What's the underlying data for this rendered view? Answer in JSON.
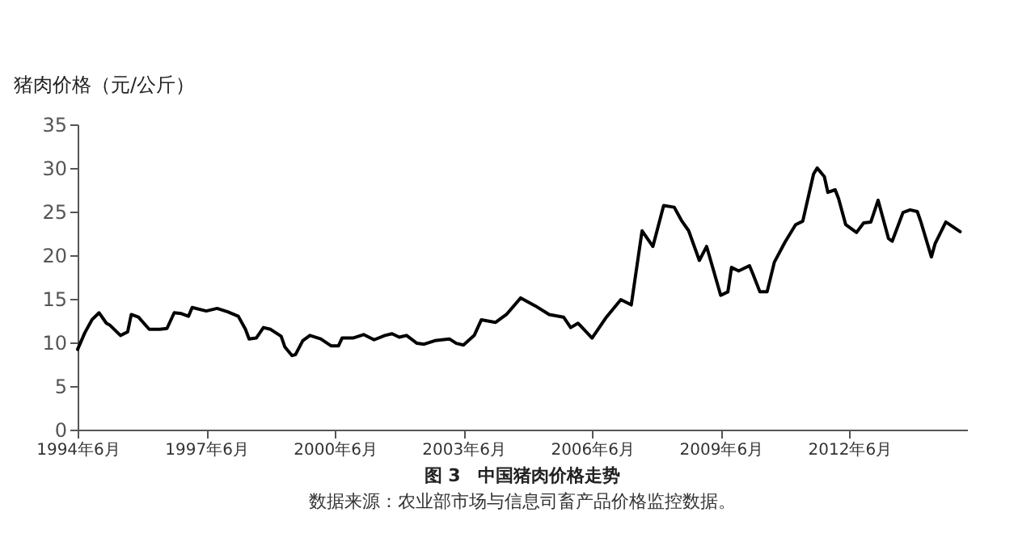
{
  "chart_data": {
    "type": "line",
    "title": "图 3　中国猪肉价格走势",
    "ylabel": "猪肉价格（元/公斤）",
    "annotations": [
      "数据来源：农业部市场与信息司畜产品价格监控数据。"
    ],
    "x": [
      "1994-06",
      "1994-08",
      "1994-10",
      "1994-12",
      "1995-02",
      "1995-03",
      "1995-06",
      "1995-08",
      "1995-09",
      "1995-11",
      "1996-02",
      "1996-05",
      "1996-07",
      "1996-09",
      "1996-11",
      "1997-01",
      "1997-02",
      "1997-06",
      "1997-09",
      "1997-12",
      "1998-03",
      "1998-05",
      "1998-06",
      "1998-08",
      "1998-10",
      "1998-12",
      "1999-03",
      "1999-04",
      "1999-06",
      "1999-07",
      "1999-09",
      "1999-11",
      "2000-02",
      "2000-05",
      "2000-07",
      "2000-08",
      "2000-11",
      "2001-02",
      "2001-05",
      "2001-08",
      "2001-10",
      "2001-12",
      "2002-02",
      "2002-05",
      "2002-07",
      "2002-10",
      "2003-02",
      "2003-04",
      "2003-06",
      "2003-09",
      "2003-11",
      "2004-03",
      "2004-06",
      "2004-10",
      "2005-02",
      "2005-06",
      "2005-10",
      "2005-12",
      "2006-02",
      "2006-06",
      "2006-10",
      "2007-02",
      "2007-05",
      "2007-08",
      "2007-11",
      "2008-02",
      "2008-05",
      "2008-07",
      "2008-09",
      "2008-12",
      "2009-02",
      "2009-03",
      "2009-06",
      "2009-08",
      "2009-09",
      "2009-11",
      "2010-02",
      "2010-03",
      "2010-05",
      "2010-07",
      "2010-09",
      "2010-12",
      "2011-03",
      "2011-05",
      "2011-08",
      "2011-09",
      "2011-11",
      "2011-12",
      "2012-02",
      "2012-03",
      "2012-05",
      "2012-08",
      "2012-10",
      "2012-12",
      "2013-02",
      "2013-05",
      "2013-06",
      "2013-09",
      "2013-11",
      "2014-01",
      "2014-02",
      "2014-05",
      "2014-06",
      "2014-09",
      "2015-01"
    ],
    "series": [
      {
        "color": "#000000",
        "values": [
          9.2,
          11.1,
          12.6,
          13.4,
          12.2,
          12.0,
          10.8,
          11.2,
          13.2,
          12.9,
          11.5,
          11.5,
          11.6,
          13.4,
          13.3,
          13.0,
          14.0,
          13.6,
          13.9,
          13.5,
          13.0,
          11.5,
          10.4,
          10.5,
          11.7,
          11.5,
          10.7,
          9.5,
          8.5,
          8.6,
          10.2,
          10.8,
          10.4,
          9.6,
          9.6,
          10.5,
          10.5,
          10.9,
          10.3,
          10.8,
          11.0,
          10.6,
          10.8,
          9.9,
          9.8,
          10.2,
          10.4,
          9.9,
          9.7,
          10.8,
          12.6,
          12.3,
          13.2,
          15.1,
          14.2,
          13.2,
          12.9,
          11.7,
          12.2,
          10.5,
          12.9,
          14.9,
          14.3,
          22.8,
          21.0,
          25.7,
          25.5,
          24.0,
          22.8,
          19.4,
          21.0,
          19.7,
          15.4,
          15.8,
          18.6,
          18.2,
          18.8,
          17.9,
          15.8,
          15.8,
          19.2,
          21.5,
          23.5,
          23.9,
          29.3,
          30.0,
          29.0,
          27.2,
          27.5,
          26.5,
          23.5,
          22.6,
          23.7,
          23.8,
          26.3,
          21.9,
          21.6,
          24.9,
          25.2,
          25.0,
          23.8,
          19.8,
          21.3,
          23.8,
          22.7
        ]
      }
    ],
    "xlim": [
      "1994-06",
      "2015-03"
    ],
    "xticks": [
      {
        "value": "1994-06",
        "label": "1994年6月"
      },
      {
        "value": "1997-06",
        "label": "1997年6月"
      },
      {
        "value": "2000-06",
        "label": "2000年6月"
      },
      {
        "value": "2003-06",
        "label": "2003年6月"
      },
      {
        "value": "2006-06",
        "label": "2006年6月"
      },
      {
        "value": "2009-06",
        "label": "2009年6月"
      },
      {
        "value": "2012-06",
        "label": "2012年6月"
      }
    ],
    "ylim": [
      0,
      35
    ],
    "yticks": [
      0,
      5,
      10,
      15,
      20,
      25,
      30,
      35
    ],
    "grid": false,
    "marker": "none",
    "line_style": "solid"
  }
}
